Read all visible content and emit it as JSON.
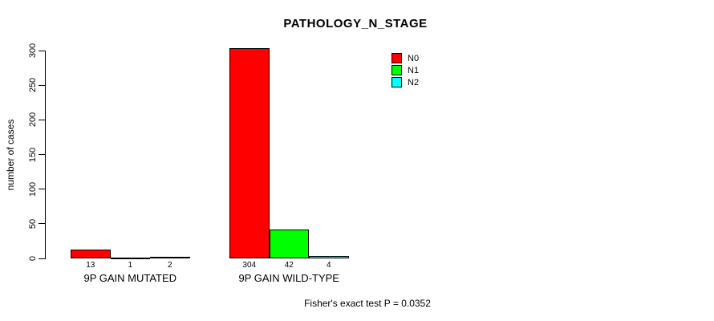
{
  "chart_data": {
    "type": "bar",
    "title": "PATHOLOGY_N_STAGE",
    "ylabel": "number of cases",
    "xlabel": "",
    "categories": [
      "9P GAIN MUTATED",
      "9P GAIN WILD-TYPE"
    ],
    "series": [
      {
        "name": "N0",
        "color": "#ff0000",
        "values": [
          13,
          304
        ]
      },
      {
        "name": "N1",
        "color": "#00ff00",
        "values": [
          1,
          42
        ]
      },
      {
        "name": "N2",
        "color": "#00ffff",
        "values": [
          2,
          4
        ]
      }
    ],
    "ylim": [
      0,
      300
    ],
    "yticks": [
      0,
      50,
      100,
      150,
      200,
      250,
      300
    ],
    "grid": false,
    "legend_position": "top-right",
    "bar_value_labels_shown": true,
    "annotation": "Fisher's exact test P = 0.0352"
  },
  "colors": {
    "background": "#ffffff",
    "axis": "#000000",
    "text": "#000000"
  }
}
